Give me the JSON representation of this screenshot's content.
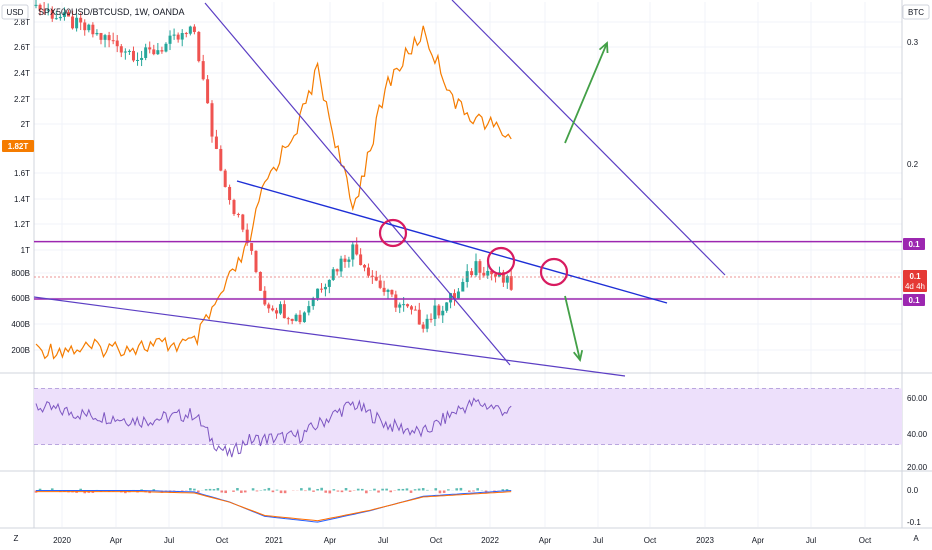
{
  "header": {
    "symbol": "SPX500USD/BTCUSD, 1W, OANDA"
  },
  "buttons": {
    "left_currency": "USD",
    "right_currency": "BTC",
    "zoom": "Z",
    "auto": "A"
  },
  "price_tag": "1.82T",
  "badges": {
    "upper": "0.1",
    "current": "0.1",
    "countdown": "4d 4h",
    "lower": "0.1"
  },
  "colors": {
    "up": "#26a69a",
    "down": "#ef5350",
    "btc_line": "#f57c00",
    "channel": "#5c3fc4",
    "trendline": "#1e2fd6",
    "hline": "#9c27b0",
    "circle": "#d81b60",
    "arrow": "#43a047",
    "rsi_line": "#7e57c2",
    "rsi_band": "#ede0fb",
    "macd": "#2962ff",
    "signal": "#ff6d00",
    "price_tag_bg": "#f57c00",
    "badge_bg": "#9c27b0",
    "current_bg": "#e53935"
  },
  "chart_data": [
    {
      "type": "candlestick+line",
      "title": "SPX500USD/BTCUSD, 1W, OANDA",
      "x_ticks": [
        "2020",
        "Apr",
        "Jul",
        "Oct",
        "2021",
        "Apr",
        "Jul",
        "Oct",
        "2022",
        "Apr",
        "Jul",
        "Oct",
        "2023",
        "Apr",
        "Jul",
        "Oct"
      ],
      "left_y_ticks": [
        "2.8T",
        "2.6T",
        "2.4T",
        "2.2T",
        "2T",
        "1.6T",
        "1.4T",
        "1.2T",
        "1T",
        "800B",
        "600B",
        "400B",
        "200B"
      ],
      "right_y_ticks": [
        "0.3",
        "0.2"
      ],
      "ylim_left": [
        0,
        2900000000000
      ],
      "left_axis_unit": "USD",
      "right_axis_unit": "BTC",
      "price_checkpoints": [
        {
          "x": "2020-01",
          "close": 2900000000000
        },
        {
          "x": "2020-04",
          "close": 2700000000000
        },
        {
          "x": "2020-07",
          "close": 2500000000000
        },
        {
          "x": "2020-10",
          "close": 2700000000000
        },
        {
          "x": "2020-11",
          "close": 1900000000000
        },
        {
          "x": "2020-12",
          "close": 1400000000000
        },
        {
          "x": "2021-01",
          "close": 1050000000000
        },
        {
          "x": "2021-02",
          "close": 580000000000
        },
        {
          "x": "2021-04",
          "close": 450000000000
        },
        {
          "x": "2021-05",
          "close": 680000000000
        },
        {
          "x": "2021-07",
          "close": 1000000000000
        },
        {
          "x": "2021-09",
          "close": 620000000000
        },
        {
          "x": "2021-11",
          "close": 420000000000
        },
        {
          "x": "2022-01",
          "close": 650000000000
        },
        {
          "x": "2022-02",
          "close": 880000000000
        },
        {
          "x": "2022-04",
          "close": 700000000000
        }
      ],
      "btc_checkpoints": [
        {
          "x": "2020-01",
          "value": 200000000000
        },
        {
          "x": "2020-04",
          "value": 210000000000
        },
        {
          "x": "2020-07",
          "value": 230000000000
        },
        {
          "x": "2020-10",
          "value": 250000000000
        },
        {
          "x": "2021-01",
          "value": 1000000000000
        },
        {
          "x": "2021-02",
          "value": 1500000000000
        },
        {
          "x": "2021-04",
          "value": 2000000000000
        },
        {
          "x": "2021-05",
          "value": 2400000000000
        },
        {
          "x": "2021-07",
          "value": 1300000000000
        },
        {
          "x": "2021-09",
          "value": 2300000000000
        },
        {
          "x": "2021-11",
          "value": 2700000000000
        },
        {
          "x": "2022-01",
          "value": 2100000000000
        },
        {
          "x": "2022-04",
          "value": 1880000000000
        }
      ],
      "horizontal_lines": [
        {
          "label": "0.1",
          "value": 1050000000000
        },
        {
          "label": "0.1",
          "value": 600000000000
        }
      ]
    },
    {
      "type": "line",
      "indicator": "RSI",
      "y_ticks": [
        "60.00",
        "40.00",
        "20.00"
      ],
      "ylim": [
        14,
        76
      ],
      "band": [
        30,
        70
      ],
      "checkpoints": [
        {
          "x": "2020-01",
          "value": 57
        },
        {
          "x": "2020-04",
          "value": 51
        },
        {
          "x": "2020-07",
          "value": 47
        },
        {
          "x": "2020-10",
          "value": 52
        },
        {
          "x": "2020-11",
          "value": 33
        },
        {
          "x": "2020-12",
          "value": 22
        },
        {
          "x": "2021-01",
          "value": 33
        },
        {
          "x": "2021-04",
          "value": 36
        },
        {
          "x": "2021-06",
          "value": 52
        },
        {
          "x": "2021-07",
          "value": 59
        },
        {
          "x": "2021-09",
          "value": 44
        },
        {
          "x": "2021-11",
          "value": 38
        },
        {
          "x": "2022-01",
          "value": 55
        },
        {
          "x": "2022-02",
          "value": 60
        },
        {
          "x": "2022-04",
          "value": 53
        }
      ]
    },
    {
      "type": "bar+line",
      "indicator": "MACD",
      "y_ticks": [
        "0.0",
        "-0.1"
      ],
      "ylim": [
        -0.12,
        0.04
      ],
      "checkpoints": [
        {
          "x": "2020-01",
          "macd": 0.0
        },
        {
          "x": "2020-07",
          "macd": 0.0
        },
        {
          "x": "2020-10",
          "macd": -0.005
        },
        {
          "x": "2020-12",
          "macd": -0.04
        },
        {
          "x": "2021-02",
          "macd": -0.09
        },
        {
          "x": "2021-05",
          "macd": -0.11
        },
        {
          "x": "2021-08",
          "macd": -0.07
        },
        {
          "x": "2021-11",
          "macd": -0.02
        },
        {
          "x": "2022-04",
          "macd": 0.0
        }
      ]
    }
  ]
}
